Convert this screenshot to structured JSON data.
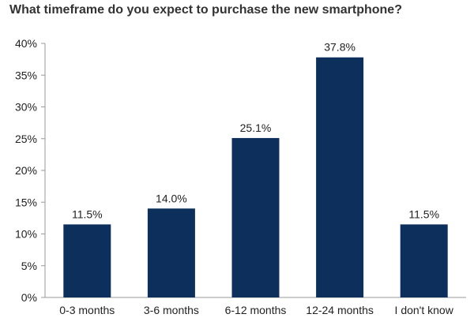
{
  "chart_data": {
    "type": "bar",
    "title": "What timeframe do you expect to purchase the new smartphone?",
    "categories": [
      "0-3 months",
      "3-6 months",
      "6-12 months",
      "12-24 months",
      "I don't know"
    ],
    "values": [
      11.5,
      14.0,
      25.1,
      37.8,
      11.5
    ],
    "data_labels": [
      "11.5%",
      "14.0%",
      "25.1%",
      "37.8%",
      "11.5%"
    ],
    "ylim": [
      0,
      40
    ],
    "yticks": [
      0,
      5,
      10,
      15,
      20,
      25,
      30,
      35,
      40
    ],
    "ytick_labels": [
      "0%",
      "5%",
      "10%",
      "15%",
      "20%",
      "25%",
      "30%",
      "35%",
      "40%"
    ],
    "xlabel": "",
    "ylabel": "",
    "grid": false,
    "legend": false,
    "bar_color": "#0c2f5c"
  }
}
